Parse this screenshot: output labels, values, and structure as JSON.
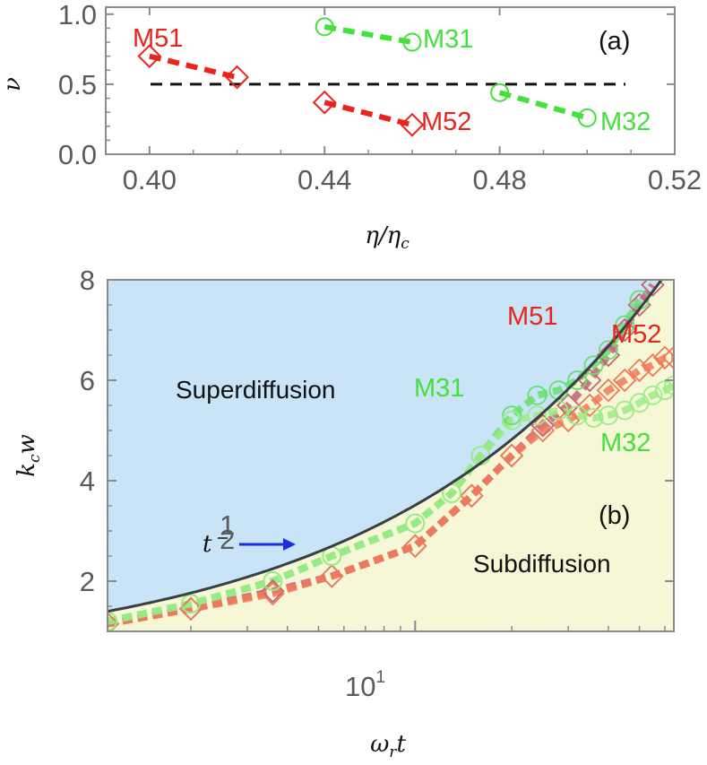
{
  "chart_data": [
    {
      "type": "scatter",
      "panel_label": "(a)",
      "ylabel": "ν",
      "xlabel": "η/η",
      "xlabel_sub": "c",
      "xlim": [
        0.39,
        0.52
      ],
      "ylim": [
        0.0,
        1.05
      ],
      "xticks": [
        "0.40",
        "0.44",
        "0.48",
        "0.52"
      ],
      "yticks": [
        "0.0",
        "0.5",
        "1.0"
      ],
      "reference_line": 0.5,
      "grid": false,
      "series": [
        {
          "name": "M51",
          "color": "#e8241c",
          "marker": "diamond",
          "x": [
            0.4,
            0.42
          ],
          "y": [
            0.7,
            0.55
          ]
        },
        {
          "name": "M52",
          "color": "#e8241c",
          "marker": "diamond",
          "x": [
            0.44,
            0.46
          ],
          "y": [
            0.37,
            0.21
          ]
        },
        {
          "name": "M31",
          "color": "#44e03c",
          "marker": "circle",
          "x": [
            0.44,
            0.46
          ],
          "y": [
            0.91,
            0.8
          ]
        },
        {
          "name": "M32",
          "color": "#44e03c",
          "marker": "circle",
          "x": [
            0.48,
            0.5
          ],
          "y": [
            0.44,
            0.26
          ]
        }
      ]
    },
    {
      "type": "scatter",
      "panel_label": "(b)",
      "ylabel": "k",
      "ylabel_sub": "c",
      "ylabel_tail": "w",
      "xlabel": "ω",
      "xlabel_sub": "r",
      "xlabel_tail": "t",
      "x_scale": "log",
      "xlim": [
        1.1,
        64
      ],
      "ylim": [
        1.0,
        8.0
      ],
      "yticks": [
        "2",
        "4",
        "6",
        "8"
      ],
      "xtick_base": "10",
      "xtick_exp": "1",
      "regions": {
        "upper": "Superdiffusion",
        "lower": "Subdiffusion"
      },
      "colors": {
        "upper": "#c9e3f7",
        "lower": "#f6f7d6"
      },
      "arrow_label": "t",
      "arrow_exp_num": "1",
      "arrow_exp_den": "2",
      "boundary": {
        "law": "sqrt",
        "coefficient": 1.0
      },
      "series": [
        {
          "name": "M51",
          "color": "#c8607a",
          "marker": "diamond",
          "x": [
            1.1,
            2.0,
            3.6,
            5.5,
            10.0,
            15,
            20,
            25,
            30,
            35,
            40,
            45,
            50,
            55
          ],
          "y": [
            1.15,
            1.45,
            1.8,
            2.1,
            2.7,
            3.7,
            4.5,
            5.1,
            5.5,
            6.0,
            6.5,
            7.0,
            7.5,
            7.9
          ]
        },
        {
          "name": "M52",
          "color": "#f07a58",
          "marker": "diamond",
          "x": [
            1.1,
            2.0,
            3.6,
            5.5,
            10.0,
            15,
            20,
            25,
            30,
            35,
            40,
            45,
            50,
            55,
            60,
            64
          ],
          "y": [
            1.15,
            1.45,
            1.75,
            2.1,
            2.7,
            3.7,
            4.5,
            5.0,
            5.2,
            5.5,
            5.8,
            6.0,
            6.2,
            6.3,
            6.45,
            6.45
          ]
        },
        {
          "name": "M31",
          "color": "#66e070",
          "marker": "circle",
          "x": [
            1.1,
            2.0,
            3.6,
            5.5,
            10.0,
            13,
            16,
            20,
            24,
            28,
            32,
            36,
            40,
            45,
            50
          ],
          "y": [
            1.2,
            1.55,
            2.0,
            2.5,
            3.15,
            3.75,
            4.5,
            5.3,
            5.7,
            5.8,
            6.0,
            6.3,
            6.6,
            7.1,
            7.6
          ]
        },
        {
          "name": "M32",
          "color": "#9cec86",
          "marker": "circle",
          "x": [
            1.1,
            2.0,
            3.6,
            5.5,
            10.0,
            13,
            16,
            20,
            24,
            28,
            32,
            36,
            40,
            45,
            50,
            55,
            60,
            64
          ],
          "y": [
            1.2,
            1.55,
            2.0,
            2.5,
            3.15,
            3.75,
            4.5,
            5.2,
            5.3,
            5.4,
            5.3,
            5.25,
            5.3,
            5.4,
            5.55,
            5.7,
            5.8,
            5.9
          ]
        }
      ]
    }
  ]
}
